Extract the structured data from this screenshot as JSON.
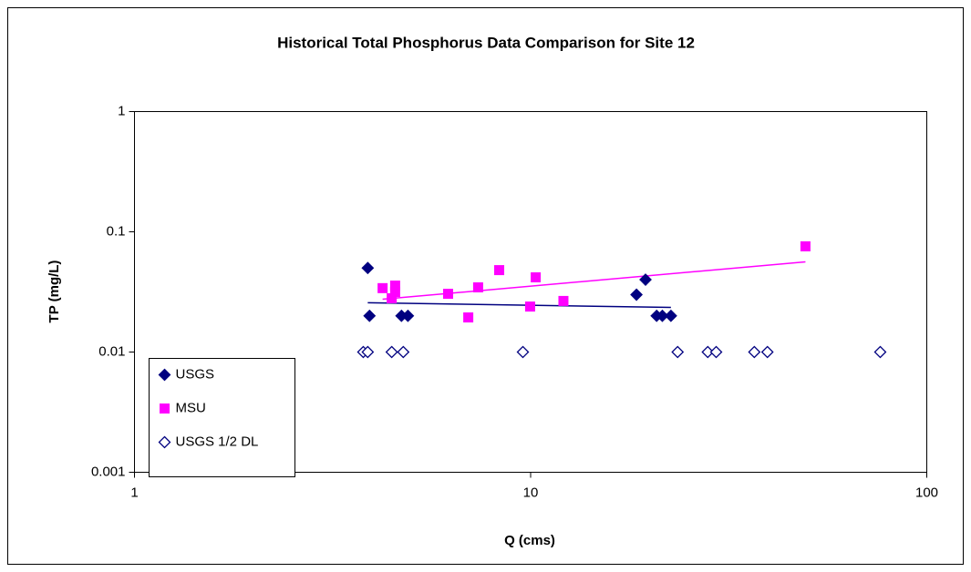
{
  "chart_data": {
    "type": "scatter",
    "title": "Historical Total Phosphorus Data Comparison for Site 12",
    "x_label": "Q (cms)",
    "y_label": "TP (mg/L)",
    "log_x": true,
    "log_y": true,
    "xlim": [
      1,
      100
    ],
    "xticks": [
      1,
      10,
      100
    ],
    "ylim": [
      0.001,
      1
    ],
    "yticks": [
      0.001,
      0.01,
      0.1,
      1
    ],
    "legend": "lower left",
    "series": [
      {
        "name": "USGS",
        "color": "#000080",
        "marker": "diamond",
        "filled": true,
        "x": [
          3.88,
          3.92,
          4.72,
          4.9,
          18.5,
          19.5,
          20.8,
          21.5,
          22.6
        ],
        "values": [
          0.05,
          0.02,
          0.02,
          0.02,
          0.03,
          0.04,
          0.02,
          0.02,
          0.02
        ],
        "trend": {
          "x": [
            3.88,
            22.6
          ],
          "values": [
            0.0257,
            0.0235
          ]
        }
      },
      {
        "name": "MSU",
        "color": "#ff00ff",
        "marker": "square",
        "filled": true,
        "x": [
          4.23,
          4.46,
          4.55,
          4.55,
          6.19,
          6.96,
          7.37,
          8.33,
          9.97,
          10.3,
          12.1,
          49.4
        ],
        "values": [
          0.034,
          0.028,
          0.0357,
          0.0316,
          0.0305,
          0.0194,
          0.0345,
          0.048,
          0.0239,
          0.0418,
          0.0266,
          0.0757
        ],
        "trend": {
          "x": [
            4.23,
            49.4
          ],
          "values": [
            0.0275,
            0.0562
          ]
        }
      },
      {
        "name": "USGS 1/2 DL",
        "color": "#000080",
        "marker": "diamond",
        "filled": false,
        "x": [
          3.78,
          3.88,
          4.46,
          4.77,
          9.56,
          23.5,
          28.0,
          29.4,
          36.7,
          39.6,
          76.3
        ],
        "values": [
          0.01,
          0.01,
          0.01,
          0.01,
          0.01,
          0.01,
          0.01,
          0.01,
          0.01,
          0.01,
          0.01
        ]
      }
    ]
  }
}
